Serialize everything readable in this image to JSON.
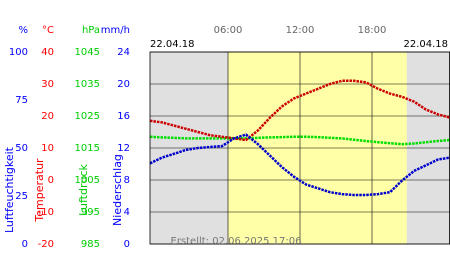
{
  "chart_data": {
    "type": "line",
    "date_left": "22.04.18",
    "date_right": "22.04.18",
    "footer": "Erstellt: 02.06.2025 17:06",
    "x": [
      -0.5,
      0.5,
      1.5,
      2.5,
      3.5,
      4.5,
      5.5,
      6.5,
      7.5,
      8.5,
      9.5,
      10.5,
      11.5,
      12.5,
      13.5,
      14.5,
      15.5,
      16.5,
      17.5,
      18.5,
      19.5,
      20.5,
      21.5,
      22.5,
      23.5,
      24.5
    ],
    "xlim": [
      -0.5,
      24.5
    ],
    "xticks": [
      {
        "value": 6,
        "label": "06:00"
      },
      {
        "value": 12,
        "label": "12:00"
      },
      {
        "value": 18,
        "label": "18:00"
      }
    ],
    "daylight": [
      6,
      20.9
    ],
    "grid": true,
    "axes": [
      {
        "unit": "%",
        "title": "Luftfeuchtigkeit",
        "color": "#0000ff",
        "lim": [
          0,
          100
        ],
        "ticks": [
          0,
          25,
          50,
          75,
          100
        ]
      },
      {
        "unit": "°C",
        "title": "Temperatur",
        "color": "#ff0000",
        "lim": [
          -20,
          40
        ],
        "ticks": [
          -20,
          -10,
          0,
          10,
          20,
          30,
          40
        ]
      },
      {
        "unit": "hPa",
        "title": "Luftdruck",
        "color": "#00cc00",
        "lim": [
          985,
          1045
        ],
        "ticks": [
          985,
          995,
          1005,
          1015,
          1025,
          1035,
          1045
        ]
      },
      {
        "unit": "mm/h",
        "title": "Niederschlag",
        "color": "#0000ff",
        "lim": [
          0,
          24
        ],
        "ticks": [
          0,
          4,
          8,
          12,
          16,
          20,
          24
        ]
      }
    ],
    "series": [
      {
        "axis": 2,
        "color": "#00dd00",
        "values": [
          1018.5,
          1018.3,
          1018.2,
          1018,
          1018,
          1018,
          1018,
          1018,
          1018,
          1018.2,
          1018.3,
          1018.4,
          1018.5,
          1018.5,
          1018.4,
          1018.2,
          1018,
          1017.6,
          1017.2,
          1016.8,
          1016.5,
          1016.2,
          1016.4,
          1016.8,
          1017.2,
          1017.5
        ]
      },
      {
        "axis": 1,
        "color": "#cc0000",
        "values": [
          18.5,
          18,
          17,
          16,
          15,
          14,
          13.5,
          13,
          12.5,
          15.5,
          19.5,
          23,
          25.5,
          27,
          28.5,
          30,
          31,
          31,
          30.5,
          28.5,
          27,
          26,
          24.5,
          22,
          20.5,
          19.5
        ]
      },
      {
        "axis": 0,
        "color": "#0000cc",
        "values": [
          42,
          45,
          47,
          49,
          50,
          50.5,
          51,
          55,
          57,
          52,
          46,
          40,
          35,
          31,
          29,
          27,
          26,
          25.5,
          25.5,
          26,
          27,
          33,
          38,
          41,
          44,
          45
        ]
      }
    ]
  }
}
